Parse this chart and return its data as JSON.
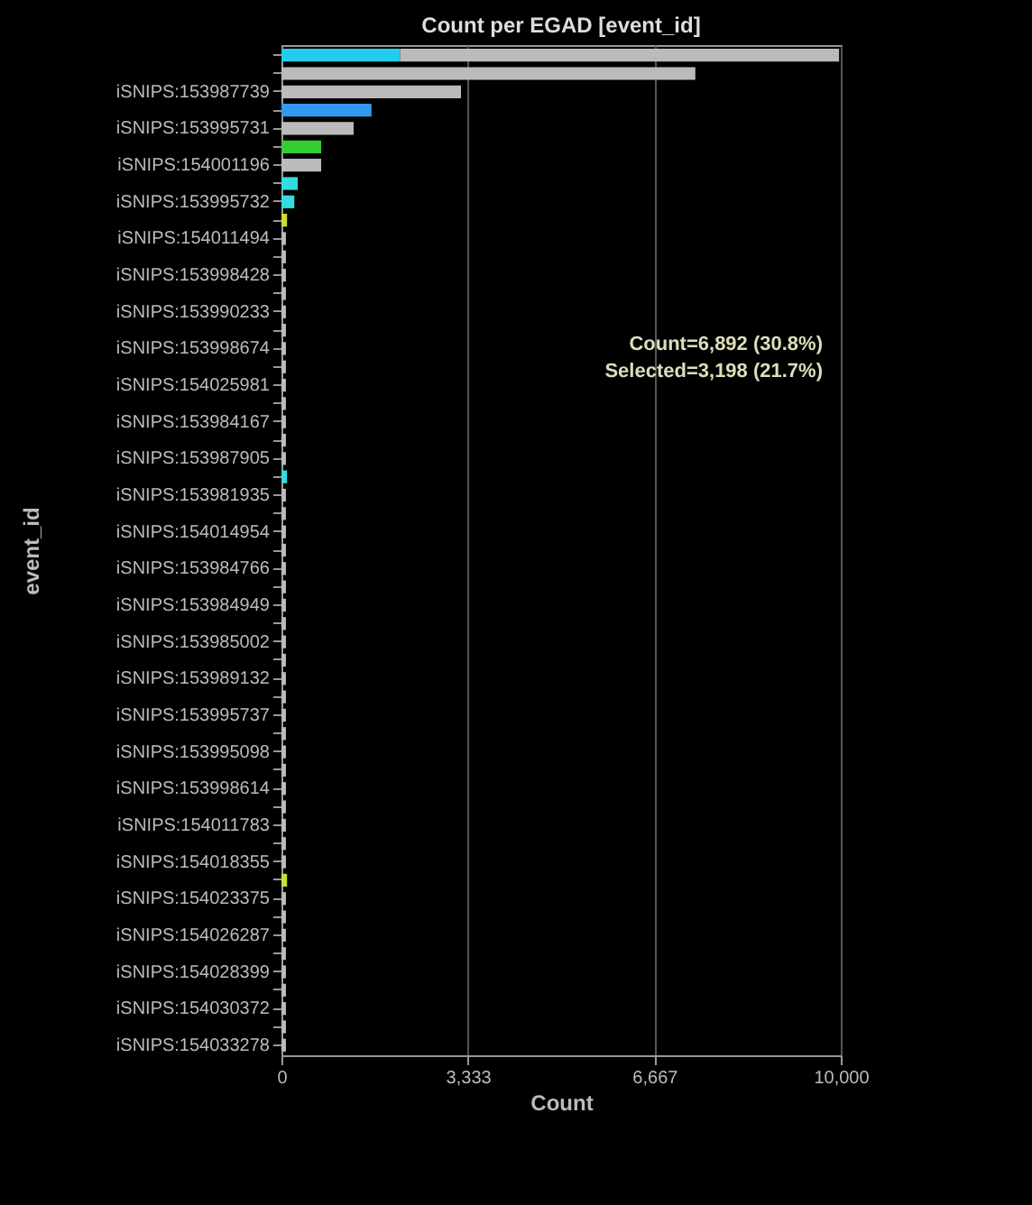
{
  "chart_data": {
    "type": "bar",
    "orientation": "horizontal",
    "stacked": true,
    "title": "Count per EGAD [event_id]",
    "xlabel": "Count",
    "ylabel": "event_id",
    "categories": [
      null,
      null,
      "iSNIPS:153987739",
      null,
      "iSNIPS:153995731",
      null,
      "iSNIPS:154001196",
      null,
      "iSNIPS:153995732",
      null,
      "iSNIPS:154011494",
      null,
      "iSNIPS:153998428",
      null,
      "iSNIPS:153990233",
      null,
      "iSNIPS:153998674",
      null,
      "iSNIPS:154025981",
      null,
      "iSNIPS:153984167",
      null,
      "iSNIPS:153987905",
      null,
      "iSNIPS:153981935",
      null,
      "iSNIPS:154014954",
      null,
      "iSNIPS:153984766",
      null,
      "iSNIPS:153984949",
      null,
      "iSNIPS:153985002",
      null,
      "iSNIPS:153989132",
      null,
      "iSNIPS:153995737",
      null,
      "iSNIPS:153995098",
      null,
      "iSNIPS:153998614",
      null,
      "iSNIPS:154011783",
      null,
      "iSNIPS:154018355",
      null,
      "iSNIPS:154023375",
      null,
      "iSNIPS:154026287",
      null,
      "iSNIPS:154028399",
      null,
      "iSNIPS:154030372",
      null,
      "iSNIPS:154033278"
    ],
    "series": [
      {
        "color": "#33dddd",
        "colors": [
          "#22ccee",
          null,
          null,
          "#3399ee",
          null,
          "#33cc33",
          null,
          "#33dddd",
          "#33dddd",
          "#ccdd33",
          null,
          null,
          null,
          null,
          null,
          null,
          null,
          null,
          null,
          null,
          null,
          null,
          null,
          "#33dddd",
          null,
          null,
          null,
          null,
          null,
          null,
          null,
          null,
          null,
          null,
          null,
          null,
          null,
          null,
          null,
          null,
          null,
          null,
          null,
          null,
          null,
          "#ccdd33",
          null,
          null,
          null,
          null,
          null,
          null,
          null,
          null,
          null
        ],
        "values": [
          2120,
          0,
          0,
          1610,
          0,
          710,
          0,
          290,
          230,
          100,
          0,
          0,
          0,
          0,
          0,
          0,
          0,
          0,
          0,
          0,
          0,
          0,
          0,
          100,
          0,
          0,
          0,
          0,
          0,
          0,
          0,
          0,
          0,
          0,
          0,
          0,
          0,
          0,
          0,
          0,
          0,
          0,
          0,
          0,
          0,
          100,
          0,
          0,
          0,
          0,
          0,
          0,
          0,
          0,
          0
        ]
      },
      {
        "color": "#bbbbbb",
        "values": [
          7850,
          7400,
          3210,
          0,
          1290,
          0,
          710,
          0,
          0,
          0,
          80,
          80,
          80,
          80,
          80,
          80,
          80,
          80,
          80,
          80,
          80,
          80,
          80,
          0,
          80,
          80,
          80,
          80,
          80,
          80,
          80,
          80,
          80,
          80,
          80,
          80,
          80,
          80,
          80,
          80,
          80,
          80,
          80,
          80,
          80,
          0,
          80,
          80,
          80,
          80,
          80,
          80,
          80,
          80,
          80
        ]
      }
    ],
    "xlim": [
      0,
      10000
    ],
    "xticks": [
      0,
      {
        "value": 3333,
        "label": "3,333"
      },
      {
        "value": 6667,
        "label": "6,667"
      },
      {
        "value": 10000,
        "label": "10,000"
      }
    ],
    "grid": "x",
    "annotations": [
      "Count=6,892 (30.8%)",
      "Selected=3,198 (21.7%)"
    ]
  }
}
